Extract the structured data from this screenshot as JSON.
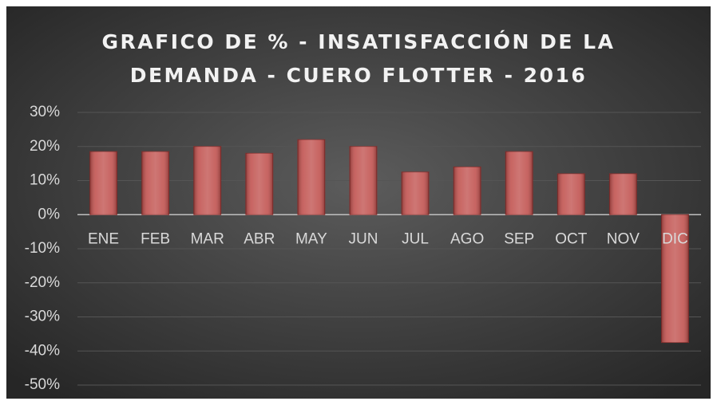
{
  "chart_data": {
    "type": "bar",
    "title": "GRAFICO DE % -  INSATISFACCIÓN DE  LA DEMANDA - CUERO FLOTTER - 2016",
    "categories": [
      "ENE",
      "FEB",
      "MAR",
      "ABR",
      "MAY",
      "JUN",
      "JUL",
      "AGO",
      "SEP",
      "OCT",
      "NOV",
      "DIC"
    ],
    "values": [
      18.5,
      18.5,
      20,
      18,
      22,
      20,
      12.5,
      14,
      18.5,
      12,
      12,
      -37.5
    ],
    "color": "#c0504d",
    "ylim": [
      -50,
      30
    ],
    "yticks": [
      {
        "value": -50,
        "label": "-50%"
      },
      {
        "value": -40,
        "label": "-40%"
      },
      {
        "value": -30,
        "label": "-30%"
      },
      {
        "value": -20,
        "label": "-20%"
      },
      {
        "value": -10,
        "label": "-10%"
      },
      {
        "value": 0,
        "label": "0%"
      },
      {
        "value": 10,
        "label": "10%"
      },
      {
        "value": 20,
        "label": "20%"
      },
      {
        "value": 30,
        "label": "30%"
      }
    ],
    "grid": true
  }
}
